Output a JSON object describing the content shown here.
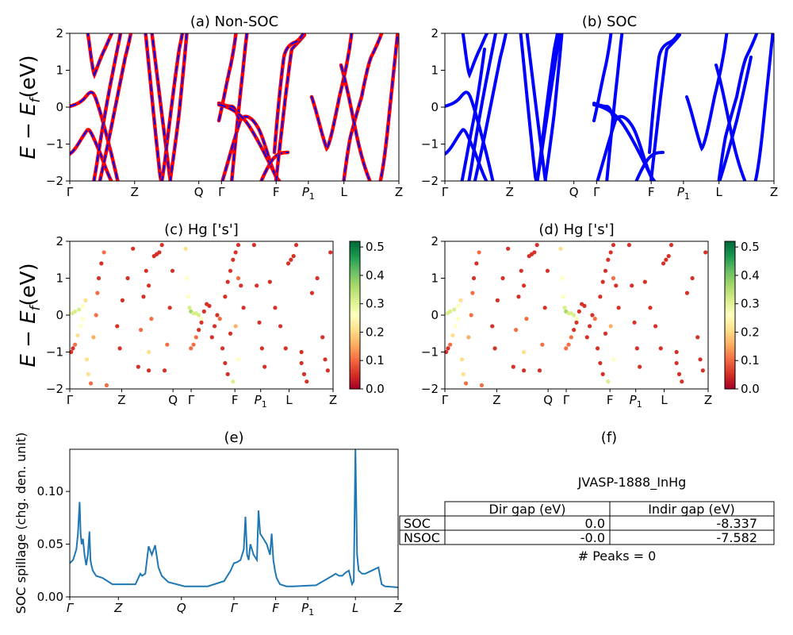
{
  "colors": {
    "nsoc_line": "#ff0000",
    "soc_line": "#0000ff",
    "spillage_line": "#1f77b4"
  },
  "panels": {
    "a": {
      "title": "(a) Non-SOC"
    },
    "b": {
      "title": "(b) SOC"
    },
    "c": {
      "title": "(c)  Hg ['s']"
    },
    "d": {
      "title": "(d) Hg ['s']"
    },
    "e": {
      "title": "(e)"
    },
    "f": {
      "title": "(f)"
    }
  },
  "band_axis": {
    "ylabel_main": "E − E",
    "ylabel_sub": "f",
    "ylabel_unit": "(eV)",
    "ylim": [
      -2,
      2
    ],
    "yticks": [
      "−2",
      "−1",
      "0",
      "1",
      "2"
    ],
    "kpoints": [
      "Γ",
      "Z",
      "Q",
      "Γ",
      "F",
      "P",
      "L",
      "Z"
    ],
    "kpoint_p_sub": "1",
    "kpoint_positions": [
      0,
      0.197,
      0.392,
      0.461,
      0.627,
      0.725,
      0.833,
      1.0
    ]
  },
  "colorbar": {
    "range": [
      0.0,
      0.52
    ],
    "ticks_c": [
      "0.0",
      "0.1",
      "0.2",
      "0.3",
      "0.4",
      "0.5"
    ],
    "ticks_d": [
      "0.0",
      "0.1",
      "0.2",
      "0.3",
      "0.4",
      "0.5"
    ]
  },
  "spillage": {
    "ylabel": "SOC spillage (chg. den. unit)",
    "yticks": [
      "0.00",
      "0.05",
      "0.10"
    ],
    "ylim": [
      0,
      0.14
    ],
    "kpoints": [
      "Γ",
      "Z",
      "Q",
      "Γ",
      "F",
      "P",
      "L",
      "Z"
    ],
    "kpoint_p_sub": "1",
    "kpoint_positions": [
      0,
      0.148,
      0.34,
      0.5,
      0.627,
      0.725,
      0.87,
      1.0
    ]
  },
  "table": {
    "material": "JVASP-1888_InHg",
    "headers": [
      "Dir gap (eV)",
      "Indir gap (eV)"
    ],
    "rows": [
      {
        "label": "SOC",
        "dir": "0.0",
        "indir": "-8.337"
      },
      {
        "label": "NSOC",
        "dir": "-0.0",
        "indir": "-7.582"
      }
    ],
    "peaks_text": "# Peaks = 0"
  },
  "chart_data": [
    {
      "type": "line",
      "panel": "a",
      "title": "(a) Non-SOC",
      "ylabel": "E − E_f (eV)",
      "ylim": [
        -2,
        2
      ],
      "x_ticks": [
        "Γ",
        "Z",
        "Q",
        "Γ",
        "F",
        "P_1",
        "L",
        "Z"
      ],
      "series": [
        {
          "x": [
            0,
            0.01,
            0.02,
            0.03,
            0.04
          ],
          "y": [
            -1.0,
            -0.95,
            -0.85,
            -0.72,
            -0.55
          ]
        },
        {
          "x": [
            0,
            0.02,
            0.04,
            0.055,
            0.06
          ],
          "y": [
            0.05,
            0.1,
            0.18,
            0.38,
            0.45
          ]
        },
        {
          "x": [
            0.055,
            0.062,
            0.07,
            0.08
          ],
          "y": [
            2.0,
            1.2,
            0.85,
            1.0
          ]
        }
      ]
    },
    {
      "type": "line",
      "panel": "b",
      "title": "(b) SOC",
      "ylim": [
        -2,
        2
      ],
      "x_ticks": [
        "Γ",
        "Z",
        "Q",
        "Γ",
        "F",
        "P_1",
        "L",
        "Z"
      ],
      "series": [
        {
          "x": [
            0,
            0.01,
            0.02,
            0.03,
            0.04
          ],
          "y": [
            -1.0,
            -0.95,
            -0.85,
            -0.72,
            -0.55
          ]
        },
        {
          "x": [
            0,
            0.02,
            0.04,
            0.055,
            0.06
          ],
          "y": [
            0.05,
            0.1,
            0.18,
            0.38,
            0.45
          ]
        }
      ]
    },
    {
      "type": "scatter",
      "panel": "c",
      "title": "(c)  Hg ['s']",
      "ylim": [
        -2,
        2
      ],
      "colorbar_range": [
        0.0,
        0.52
      ]
    },
    {
      "type": "scatter",
      "panel": "d",
      "title": "(d) Hg ['s']",
      "ylim": [
        -2,
        2
      ],
      "colorbar_range": [
        0.0,
        0.52
      ]
    },
    {
      "type": "line",
      "panel": "e",
      "title": "(e)",
      "ylabel": "SOC spillage (chg. den. unit)",
      "ylim": [
        0,
        0.14
      ],
      "x": [
        0,
        0.01,
        0.02,
        0.025,
        0.03,
        0.033,
        0.036,
        0.04,
        0.045,
        0.05,
        0.055,
        0.06,
        0.063,
        0.066,
        0.07,
        0.08,
        0.1,
        0.13,
        0.17,
        0.2,
        0.215,
        0.22,
        0.23,
        0.24,
        0.25,
        0.26,
        0.27,
        0.28,
        0.3,
        0.35,
        0.42,
        0.47,
        0.49,
        0.5,
        0.51,
        0.52,
        0.53,
        0.535,
        0.54,
        0.545,
        0.55,
        0.56,
        0.57,
        0.575,
        0.58,
        0.59,
        0.6,
        0.61,
        0.615,
        0.62,
        0.625,
        0.63,
        0.64,
        0.66,
        0.68,
        0.75,
        0.8,
        0.81,
        0.82,
        0.83,
        0.84,
        0.85,
        0.86,
        0.865,
        0.87,
        0.875,
        0.88,
        0.89,
        0.9,
        0.92,
        0.94,
        0.95,
        0.96,
        1.0
      ],
      "y": [
        0.032,
        0.035,
        0.045,
        0.06,
        0.09,
        0.06,
        0.05,
        0.055,
        0.04,
        0.03,
        0.04,
        0.062,
        0.035,
        0.03,
        0.025,
        0.02,
        0.018,
        0.012,
        0.012,
        0.012,
        0.022,
        0.02,
        0.022,
        0.048,
        0.04,
        0.049,
        0.028,
        0.02,
        0.014,
        0.01,
        0.01,
        0.015,
        0.025,
        0.032,
        0.033,
        0.035,
        0.045,
        0.076,
        0.04,
        0.035,
        0.05,
        0.04,
        0.035,
        0.082,
        0.06,
        0.055,
        0.05,
        0.04,
        0.06,
        0.035,
        0.025,
        0.018,
        0.012,
        0.01,
        0.01,
        0.011,
        0.02,
        0.022,
        0.02,
        0.02,
        0.023,
        0.025,
        0.012,
        0.015,
        0.14,
        0.04,
        0.025,
        0.022,
        0.022,
        0.025,
        0.028,
        0.012,
        0.01,
        0.009
      ]
    },
    {
      "type": "table",
      "panel": "f",
      "title": "JVASP-1888_InHg",
      "columns": [
        "",
        "Dir gap (eV)",
        "Indir gap (eV)"
      ],
      "rows": [
        [
          "SOC",
          "0.0",
          "-8.337"
        ],
        [
          "NSOC",
          "-0.0",
          "-7.582"
        ]
      ]
    }
  ]
}
